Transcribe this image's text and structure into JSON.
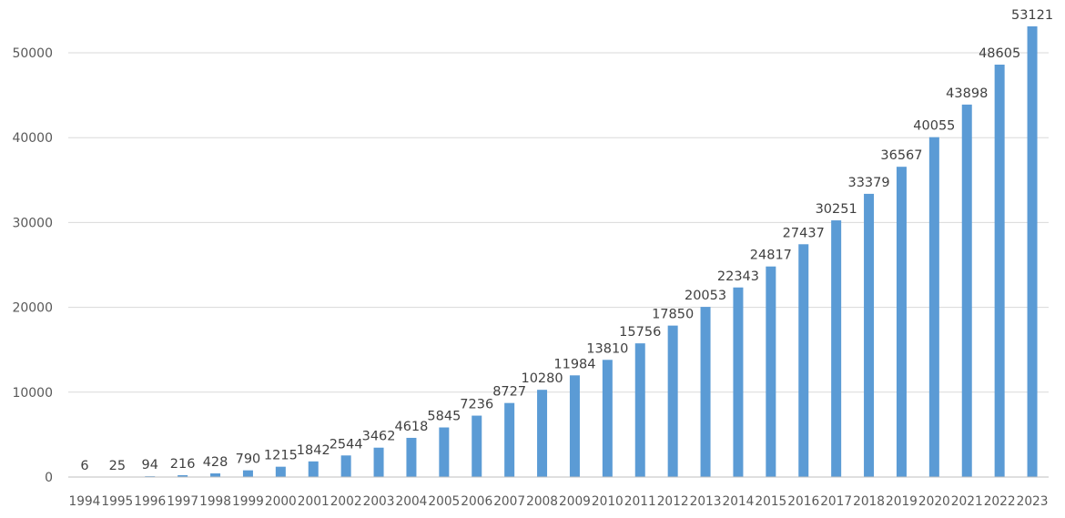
{
  "chart_data": {
    "type": "bar",
    "title": "",
    "xlabel": "",
    "ylabel": "",
    "ylim": [
      0,
      55000
    ],
    "yticks": [
      0,
      10000,
      20000,
      30000,
      40000,
      50000
    ],
    "grid": true,
    "legend": "none",
    "bar_color": "#5b9bd5",
    "categories": [
      "1994",
      "1995",
      "1996",
      "1997",
      "1998",
      "1999",
      "2000",
      "2001",
      "2002",
      "2003",
      "2004",
      "2005",
      "2006",
      "2007",
      "2008",
      "2009",
      "2010",
      "2011",
      "2012",
      "2013",
      "2014",
      "2015",
      "2016",
      "2017",
      "2018",
      "2019",
      "2020",
      "2021",
      "2022",
      "2023"
    ],
    "values": [
      6,
      25,
      94,
      216,
      428,
      790,
      1215,
      1842,
      2544,
      3462,
      4618,
      5845,
      7236,
      8727,
      10280,
      11984,
      13810,
      15756,
      17850,
      20053,
      22343,
      24817,
      27437,
      30251,
      33379,
      36567,
      40055,
      43898,
      48605,
      53121
    ]
  }
}
